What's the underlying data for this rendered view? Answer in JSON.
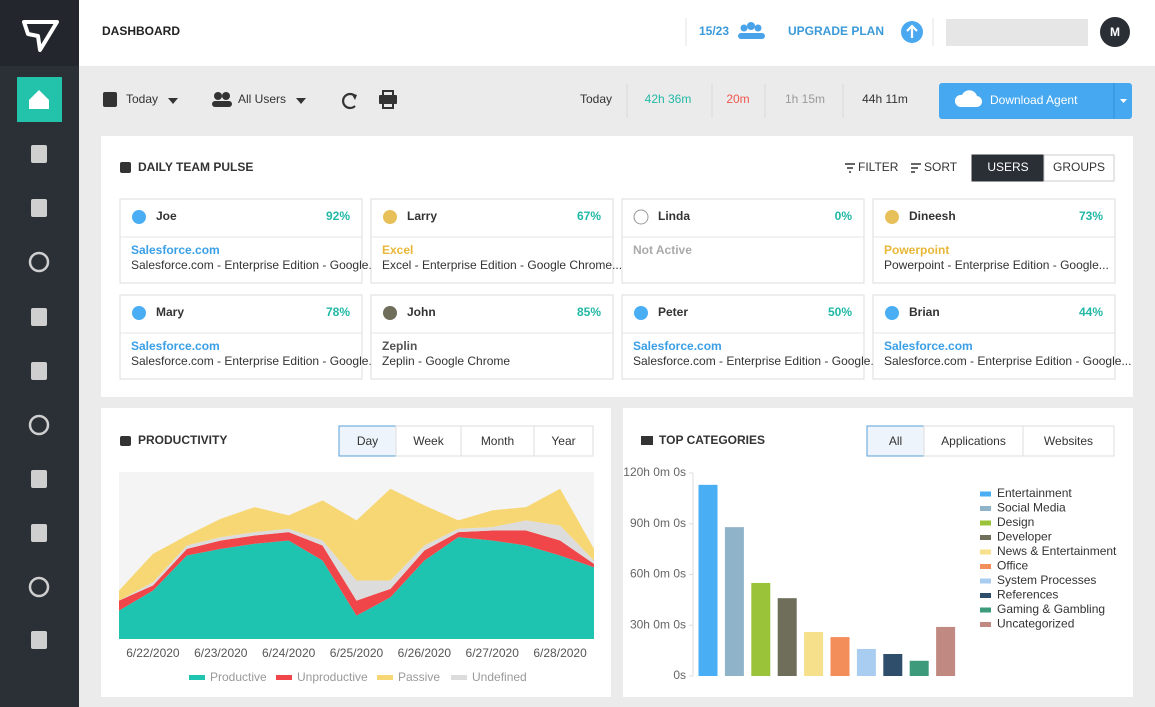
{
  "header": {
    "title": "DASHBOARD",
    "seats": "15/23",
    "upgrade": "UPGRADE PLAN",
    "avatar": "M"
  },
  "toolbar": {
    "date_filter": "Today",
    "user_filter": "All Users",
    "summary_label": "Today",
    "totals": [
      {
        "label": "42h 36m",
        "color": "#22b8a6"
      },
      {
        "label": "20m",
        "color": "#f0564f"
      },
      {
        "label": "1h 15m",
        "color": "#9a9a9a"
      },
      {
        "label": "44h 11m",
        "color": "#333333"
      }
    ],
    "download": "Download Agent"
  },
  "pulse": {
    "title": "DAILY TEAM PULSE",
    "filter": "FILTER",
    "sort": "SORT",
    "views": [
      "USERS",
      "GROUPS"
    ],
    "active_view": 0,
    "users": [
      {
        "name": "Joe",
        "score": "92%",
        "dot": "#4aaef5",
        "app": "Salesforce.com",
        "app_color": "#3a9fe6",
        "detail": "Salesforce.com - Enterprise Edition - Google..."
      },
      {
        "name": "Larry",
        "score": "67%",
        "dot": "#e8c05a",
        "app": "Excel",
        "app_color": "#e8b73a",
        "detail": "Excel - Enterprise Edition - Google Chrome..."
      },
      {
        "name": "Linda",
        "score": "0%",
        "dot": "#ffffff",
        "app": "Not Active",
        "app_color": "#aaaaaa",
        "detail": null
      },
      {
        "name": "Dineesh",
        "score": "73%",
        "dot": "#e8c05a",
        "app": "Powerpoint",
        "app_color": "#e8b73a",
        "detail": "Powerpoint - Enterprise Edition - Google..."
      },
      {
        "name": "Mary",
        "score": "78%",
        "dot": "#4aaef5",
        "app": "Salesforce.com",
        "app_color": "#3a9fe6",
        "detail": "Salesforce.com - Enterprise Edition - Google..."
      },
      {
        "name": "John",
        "score": "85%",
        "dot": "#6e6e5a",
        "app": "Zeplin",
        "app_color": "#555555",
        "detail": "Zeplin - Google Chrome"
      },
      {
        "name": "Peter",
        "score": "50%",
        "dot": "#4aaef5",
        "app": "Salesforce.com",
        "app_color": "#3a9fe6",
        "detail": "Salesforce.com - Enterprise Edition - Google..."
      },
      {
        "name": "Brian",
        "score": "44%",
        "dot": "#4aaef5",
        "app": "Salesforce.com",
        "app_color": "#3a9fe6",
        "detail": "Salesforce.com - Enterprise Edition - Google..."
      }
    ]
  },
  "chart_data": [
    {
      "type": "stacked_area",
      "title": "PRODUCTIVITY",
      "periods": [
        "Day",
        "Week",
        "Month",
        "Year"
      ],
      "active_period": 0,
      "categories": [
        null,
        "6/22/2020",
        null,
        "6/23/2020",
        null,
        "6/24/2020",
        null,
        "6/25/2020",
        null,
        "6/26/2020",
        null,
        "6/27/2020",
        null,
        "6/28/2020",
        null
      ],
      "series": [
        {
          "name": "Productive",
          "color": "#1fc4b1",
          "values": [
            17,
            29,
            50,
            54,
            57,
            59,
            47,
            14,
            25,
            47,
            61,
            59,
            56,
            50,
            43
          ]
        },
        {
          "name": "Unproductive",
          "color": "#f0464a",
          "values": [
            6,
            3,
            4,
            5,
            5,
            5,
            9,
            9,
            5,
            6,
            3,
            6,
            9,
            9,
            2
          ]
        },
        {
          "name": "Passive",
          "color": "#f7d774",
          "values": [
            6,
            17,
            6,
            11,
            15,
            8,
            24,
            36,
            55,
            24,
            5,
            10,
            8,
            22,
            7
          ]
        },
        {
          "name": "Undefined",
          "color": "#dcdcdc",
          "values": [
            0,
            2,
            2,
            2,
            2,
            2,
            3,
            12,
            5,
            3,
            2,
            2,
            6,
            9,
            2
          ]
        }
      ],
      "stack_order": [
        0,
        1,
        3,
        2
      ],
      "ylim": [
        0,
        100
      ]
    },
    {
      "type": "bar",
      "title": "TOP CATEGORIES",
      "filters": [
        "All",
        "Applications",
        "Websites"
      ],
      "active_filter": 0,
      "categories": [
        "Entertainment",
        "Social Media",
        "Design",
        "Developer",
        "News & Entertainment",
        "Office",
        "System Processes",
        "References",
        "Gaming & Gambling",
        "Uncategorized"
      ],
      "values": [
        113,
        88,
        55,
        46,
        26,
        23,
        16,
        13,
        9,
        29
      ],
      "colors": [
        "#4aaef5",
        "#8fb4c9",
        "#9ac33a",
        "#6e6e5a",
        "#f7e08c",
        "#f38e5b",
        "#a9cdf0",
        "#2f4e6b",
        "#3d9a7a",
        "#c08a83"
      ],
      "ylim": [
        0,
        120
      ],
      "yticks": [
        {
          "value": 0,
          "label": "0s"
        },
        {
          "value": 30,
          "label": "30h 0m 0s"
        },
        {
          "value": 60,
          "label": "60h 0m 0s"
        },
        {
          "value": 90,
          "label": "90h 0m 0s"
        },
        {
          "value": 120,
          "label": "120h 0m 0s"
        }
      ],
      "legend": "right"
    }
  ]
}
